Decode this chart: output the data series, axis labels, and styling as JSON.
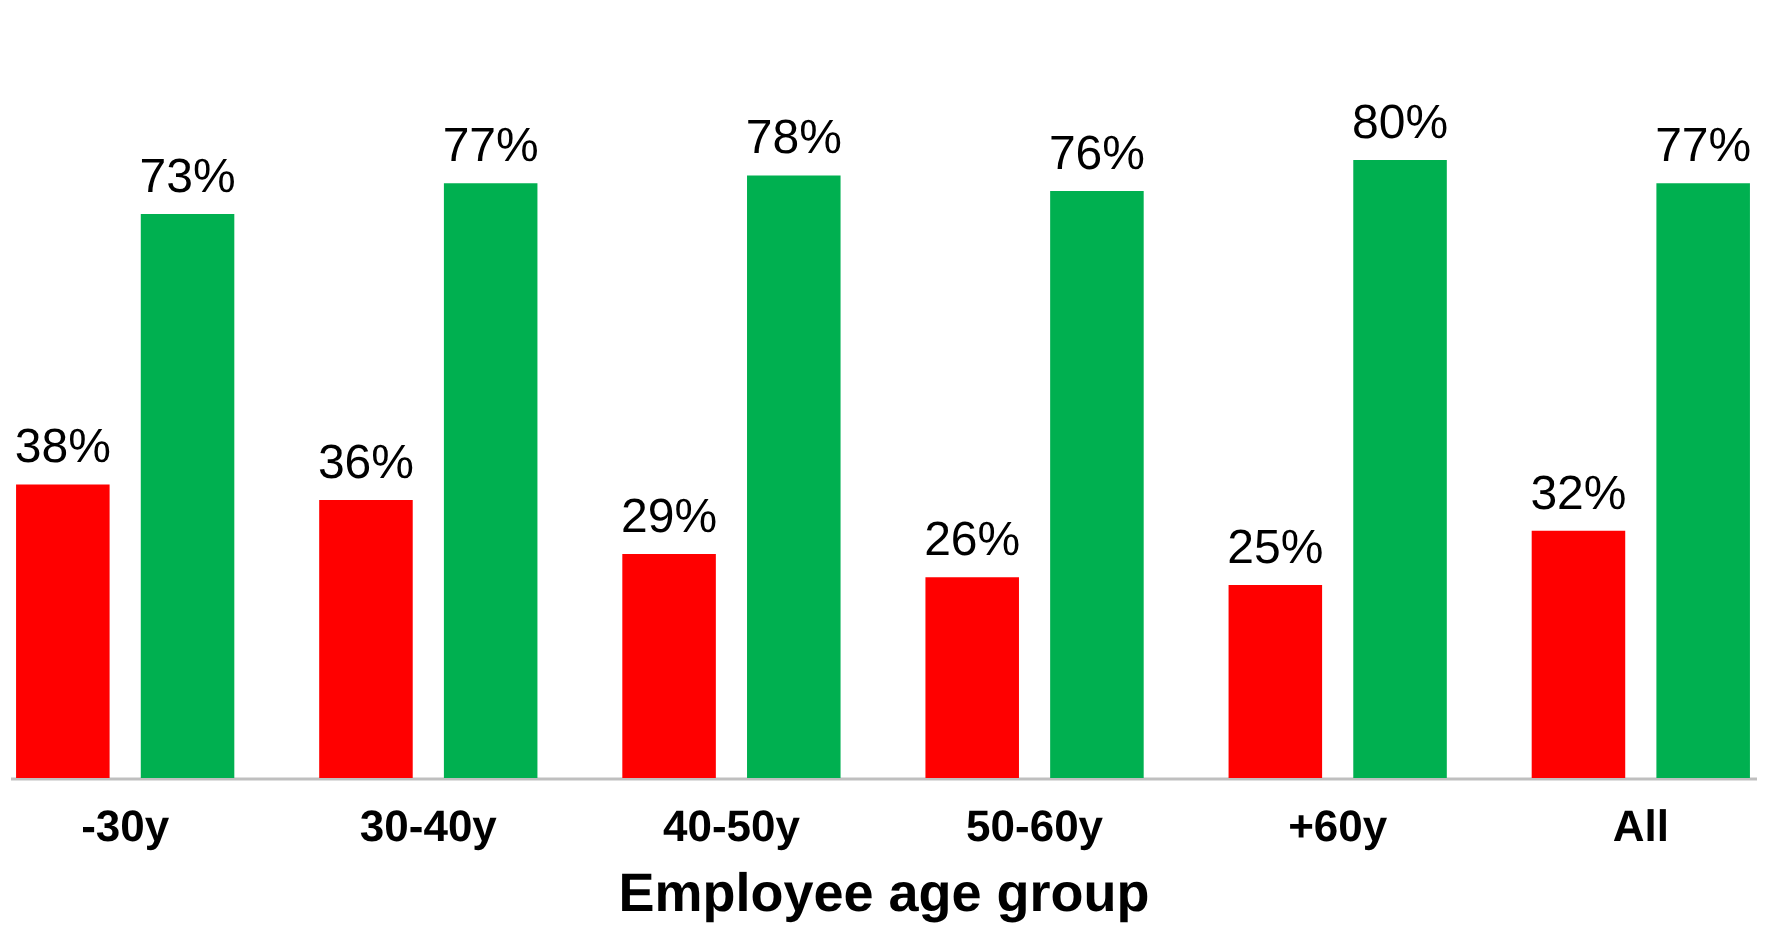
{
  "chart_data": {
    "type": "bar",
    "xlabel": "Employee age group",
    "categories": [
      "-30y",
      "30-40y",
      "40-50y",
      "50-60y",
      "+60y",
      "All"
    ],
    "series": [
      {
        "color": "#ff0000",
        "values": [
          38,
          36,
          29,
          26,
          25,
          32
        ],
        "value_labels": [
          "38%",
          "36%",
          "29%",
          "26%",
          "25%",
          "32%"
        ]
      },
      {
        "color": "#00b050",
        "values": [
          73,
          77,
          78,
          76,
          80,
          77
        ],
        "value_labels": [
          "73%",
          "77%",
          "78%",
          "76%",
          "80%",
          "77%"
        ]
      }
    ]
  }
}
